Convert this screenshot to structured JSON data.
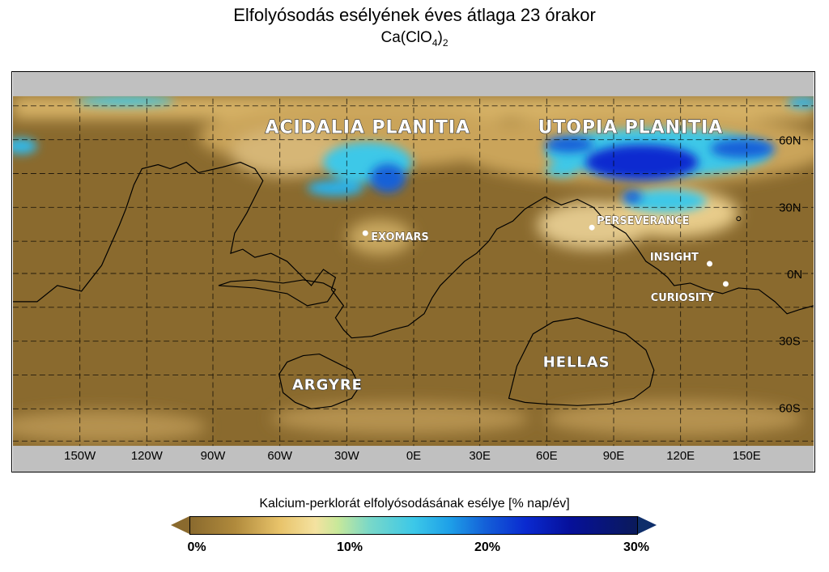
{
  "title": "Elfolyósodás esélyének éves átlaga 23 órakor",
  "subtitle": {
    "base": "Ca(ClO",
    "sub1": "4",
    "close": ")",
    "sub2": "2"
  },
  "map": {
    "lon_labels": [
      "150W",
      "120W",
      "90W",
      "60W",
      "30W",
      "0E",
      "30E",
      "60E",
      "90E",
      "120E",
      "150E"
    ],
    "lat_labels": [
      "60N",
      "30N",
      "0N",
      "30S",
      "60S"
    ],
    "regions": [
      "ACIDALIA PLANITIA",
      "UTOPIA PLANITIA",
      "ARGYRE",
      "HELLAS"
    ],
    "sites": [
      "EXOMARS",
      "PERSEVERANCE",
      "INSIGHT",
      "CURIOSITY"
    ]
  },
  "colorbar": {
    "title": "Kalcium-perklorát elfolyósodásának esélye [% nap/év]",
    "ticks": [
      "0%",
      "10%",
      "20%",
      "30%"
    ],
    "range": [
      0,
      30
    ],
    "extend": "both"
  },
  "colors": {
    "base_brown": "#8a6a2e",
    "low_tan": "#d8b46a",
    "mid_cyan": "#3cc8e8",
    "high_blue": "#0a2ad0"
  }
}
